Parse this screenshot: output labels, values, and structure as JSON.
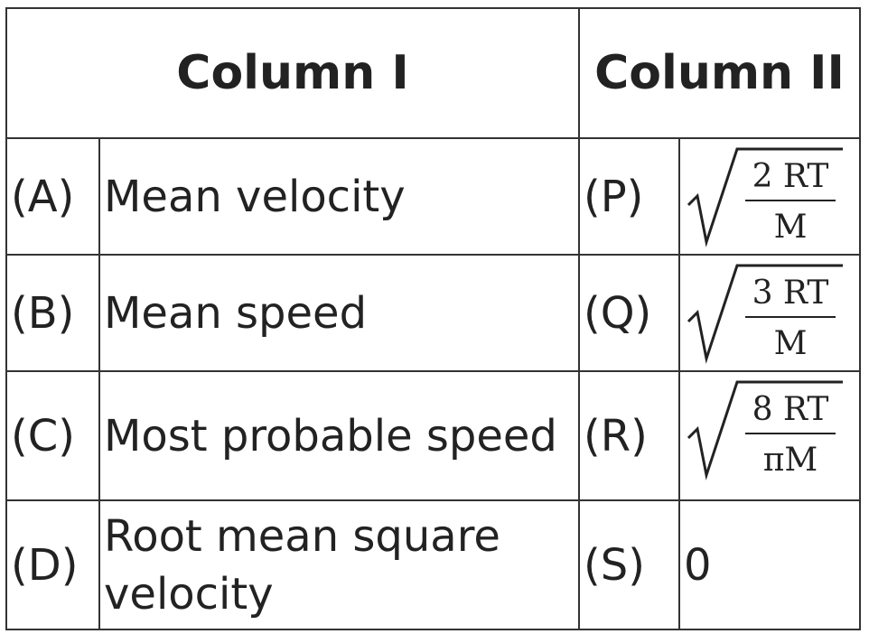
{
  "table": {
    "header": [
      "Column I",
      "Column II"
    ],
    "rows": [
      {
        "label": "(A)",
        "item": "Mean velocity",
        "code": "(P)",
        "numerator": "2 RT",
        "denominator": "M"
      },
      {
        "label": "(B)",
        "item": "Mean speed",
        "code": "(Q)",
        "numerator": "3 RT",
        "denominator": "M"
      },
      {
        "label": "(C)",
        "item": "Most probable speed",
        "code": "(R)",
        "numerator": "8 RT",
        "denominator": "πM"
      },
      {
        "label": "(D)",
        "item": "Root mean square velocity",
        "code": "(S)",
        "answer": "0"
      }
    ]
  }
}
